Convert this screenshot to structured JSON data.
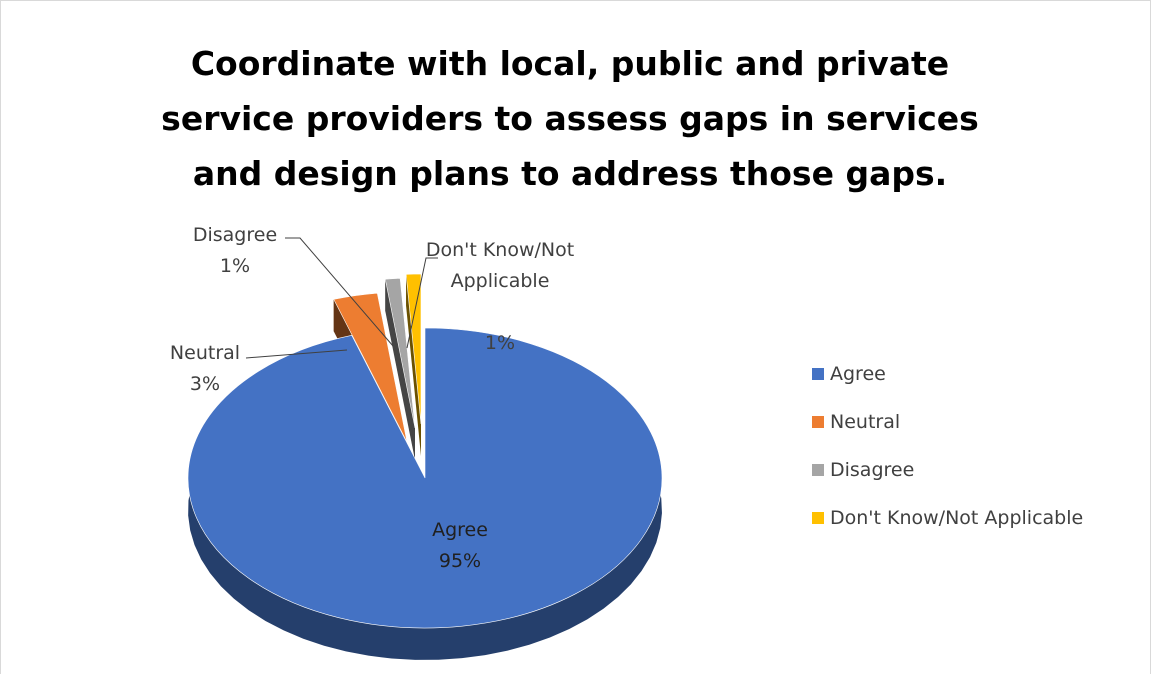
{
  "chart_data": {
    "type": "pie",
    "title": "Coordinate with local, public and private\nservice providers to assess gaps in services\nand design plans to address those gaps.",
    "categories": [
      "Agree",
      "Neutral",
      "Disagree",
      "Don't Know/Not Applicable"
    ],
    "values": [
      95,
      3,
      1,
      1
    ],
    "colors": [
      "#4472C4",
      "#ED7D31",
      "#A5A5A5",
      "#FFC000"
    ],
    "data_labels": [
      {
        "name": "Agree",
        "value": "95%"
      },
      {
        "name": "Neutral",
        "value": "3%"
      },
      {
        "name": "Disagree",
        "value": "1%"
      },
      {
        "name": "Don't Know/Not\nApplicable",
        "value": "1%"
      }
    ],
    "legend_position": "right",
    "style": "3d-exploded"
  }
}
